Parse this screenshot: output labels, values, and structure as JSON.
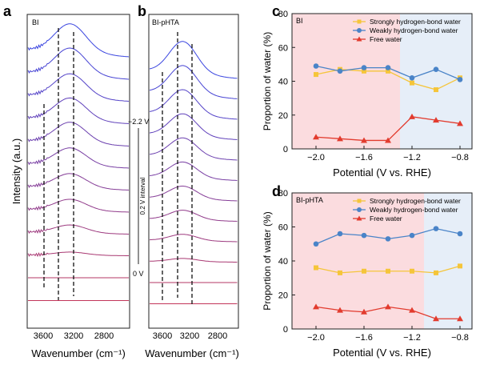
{
  "panels": {
    "a": {
      "letter": "a",
      "label": "BI",
      "ylabel": "Intensity (a.u.)",
      "xlabel": "Wavenumber (cm⁻¹)",
      "xticks": [
        "3600",
        "3200",
        "2800"
      ]
    },
    "b": {
      "letter": "b",
      "label": "BI-pHTA",
      "xlabel": "Wavenumber (cm⁻¹)",
      "xticks": [
        "3600",
        "3200",
        "2800"
      ],
      "potential_top": "−2.2 V",
      "potential_interval": "0.2 V interval",
      "potential_bottom": "0 V"
    },
    "c": {
      "letter": "c",
      "label": "BI"
    },
    "d": {
      "letter": "d",
      "label": "BI-pHTA"
    }
  },
  "colors": {
    "strong": "#f5c53a",
    "weak": "#4a84c8",
    "free": "#e23b2e",
    "pink_bg": "#fbdcdf",
    "blue_bg": "#e6eef8"
  },
  "chart_data": [
    {
      "type": "line",
      "panel": "c",
      "xlabel": "Potential (V vs. RHE)",
      "ylabel": "Proportion of water (%)",
      "xlim": [
        -2.2,
        -0.7
      ],
      "ylim": [
        0,
        80
      ],
      "xticks": [
        -2.0,
        -1.6,
        -1.2,
        -0.8
      ],
      "xtick_labels": [
        "−2.0",
        "−1.6",
        "−1.2",
        "−0.8"
      ],
      "yticks": [
        0,
        20,
        40,
        60,
        80
      ],
      "shade_split": -1.3,
      "x": [
        -2.0,
        -1.8,
        -1.6,
        -1.4,
        -1.2,
        -1.0,
        -0.8
      ],
      "series": [
        {
          "name": "Strongly hydrogen-bond water",
          "values": [
            44,
            47,
            46,
            46,
            39,
            35,
            42
          ]
        },
        {
          "name": "Weakly hydrogen-bond water",
          "values": [
            49,
            46,
            48,
            48,
            42,
            47,
            41
          ]
        },
        {
          "name": "Free water",
          "values": [
            7,
            6,
            5,
            5,
            19,
            17,
            15
          ]
        }
      ]
    },
    {
      "type": "line",
      "panel": "d",
      "xlabel": "Potential (V vs. RHE)",
      "ylabel": "Proportion of water (%)",
      "xlim": [
        -2.2,
        -0.7
      ],
      "ylim": [
        0,
        80
      ],
      "xticks": [
        -2.0,
        -1.6,
        -1.2,
        -0.8
      ],
      "xtick_labels": [
        "−2.0",
        "−1.6",
        "−1.2",
        "−0.8"
      ],
      "yticks": [
        0,
        20,
        40,
        60,
        80
      ],
      "shade_split": -1.1,
      "x": [
        -2.0,
        -1.8,
        -1.6,
        -1.4,
        -1.2,
        -1.0,
        -0.8
      ],
      "series": [
        {
          "name": "Strongly hydrogen-bond water",
          "values": [
            36,
            33,
            34,
            34,
            34,
            33,
            37
          ]
        },
        {
          "name": "Weakly hydrogen-bond water",
          "values": [
            50,
            56,
            55,
            53,
            55,
            59,
            56
          ]
        },
        {
          "name": "Free water",
          "values": [
            13,
            11,
            10,
            13,
            11,
            6,
            6
          ]
        }
      ]
    }
  ]
}
